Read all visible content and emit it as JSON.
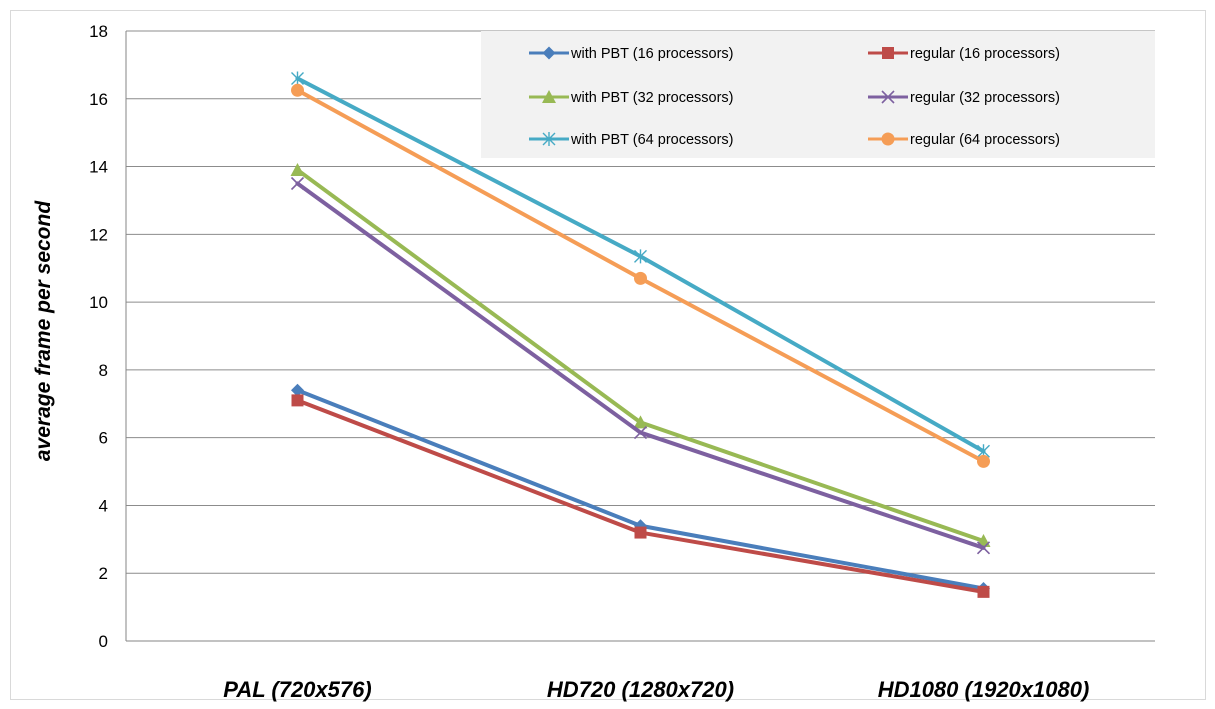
{
  "chart_data": {
    "type": "line",
    "title": "",
    "xlabel": "",
    "ylabel": "average frame per second",
    "categories": [
      "PAL (720x576)",
      "HD720 (1280x720)",
      "HD1080 (1920x1080)"
    ],
    "ylim": [
      0,
      18
    ],
    "yticks": [
      0,
      2,
      4,
      6,
      8,
      10,
      12,
      14,
      16,
      18
    ],
    "grid": true,
    "legend_position": "top-right",
    "series": [
      {
        "name": "with PBT (16 processors)",
        "values": [
          7.4,
          3.4,
          1.55
        ],
        "color": "#4a7ebb",
        "marker": "diamond"
      },
      {
        "name": "regular (16 processors)",
        "values": [
          7.1,
          3.2,
          1.45
        ],
        "color": "#be4b48",
        "marker": "square"
      },
      {
        "name": "with PBT (32 processors)",
        "values": [
          13.9,
          6.45,
          2.95
        ],
        "color": "#98b954",
        "marker": "triangle"
      },
      {
        "name": "regular (32 processors)",
        "values": [
          13.5,
          6.15,
          2.75
        ],
        "color": "#7d60a0",
        "marker": "x"
      },
      {
        "name": "with PBT (64 processors)",
        "values": [
          16.6,
          11.35,
          5.6
        ],
        "color": "#46aac5",
        "marker": "star"
      },
      {
        "name": "regular (64 processors)",
        "values": [
          16.25,
          10.7,
          5.3
        ],
        "color": "#f59d56",
        "marker": "circle"
      }
    ]
  }
}
